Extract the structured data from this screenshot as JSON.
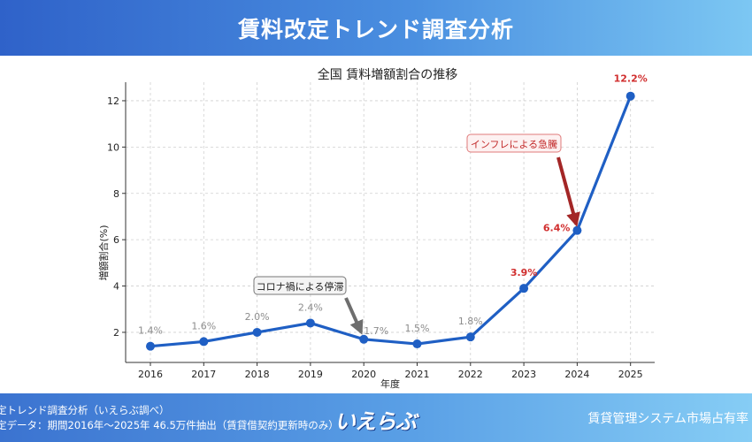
{
  "header": {
    "title": "賃料改定トレンド調査分析"
  },
  "chart_data": {
    "type": "line",
    "title": "全国 賃料増額割合の推移",
    "xlabel": "年度",
    "ylabel": "増額割合(%)",
    "categories": [
      "2016",
      "2017",
      "2018",
      "2019",
      "2020",
      "2021",
      "2022",
      "2023",
      "2024",
      "2025"
    ],
    "values": [
      1.4,
      1.6,
      2.0,
      2.4,
      1.7,
      1.5,
      1.8,
      3.9,
      6.4,
      12.2
    ],
    "point_labels": [
      "1.4%",
      "1.6%",
      "2.0%",
      "2.4%",
      "1.7%",
      "1.5%",
      "1.8%",
      "3.9%",
      "6.4%",
      "12.2%"
    ],
    "highlight_from_index": 7,
    "ylim": [
      0.7,
      12.8
    ],
    "yticks": [
      2,
      4,
      6,
      8,
      10,
      12
    ],
    "grid": true,
    "annotations": [
      {
        "text": "コロナ禍による停滞",
        "target_index": 4
      },
      {
        "text": "インフレによる急騰",
        "target_index": 8
      }
    ],
    "colors": {
      "line": "#1f5fc4",
      "normal_label": "#8c8c8c",
      "highlight_label": "#d12f2f",
      "covid_arrow": "#6e6e6e",
      "inflation_arrow": "#a32626",
      "inflation_box_border": "#e07a7a"
    }
  },
  "footer": {
    "line1": "定トレンド調査分析（いえらぶ調べ）",
    "line2": "定データ：期間2016年〜2025年 46.5万件抽出（賃貸借契約更新時のみ）",
    "logo": "いえらぶ",
    "right": "賃貸管理システム市場占有率"
  }
}
